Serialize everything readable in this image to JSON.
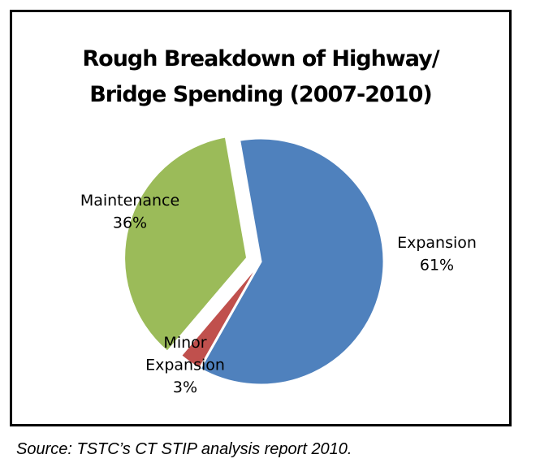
{
  "chart_data": {
    "type": "pie",
    "title_lines": [
      "Rough Breakdown of  Highway/",
      "Bridge Spending (2007-2010)"
    ],
    "slices": [
      {
        "name": "Expansion",
        "label_lines": [
          "Expansion",
          "61%"
        ],
        "value": 61,
        "color": "#4F81BD",
        "exploded": false
      },
      {
        "name": "Minor Expansion",
        "label_lines": [
          "Minor",
          "Expansion",
          "3%"
        ],
        "value": 3,
        "color": "#C0504D",
        "exploded": false
      },
      {
        "name": "Maintenance",
        "label_lines": [
          "Maintenance",
          "36%"
        ],
        "value": 36,
        "color": "#9BBB59",
        "exploded": true
      }
    ],
    "legend": "none"
  },
  "source": "Source: TSTC’s CT STIP analysis report 2010."
}
